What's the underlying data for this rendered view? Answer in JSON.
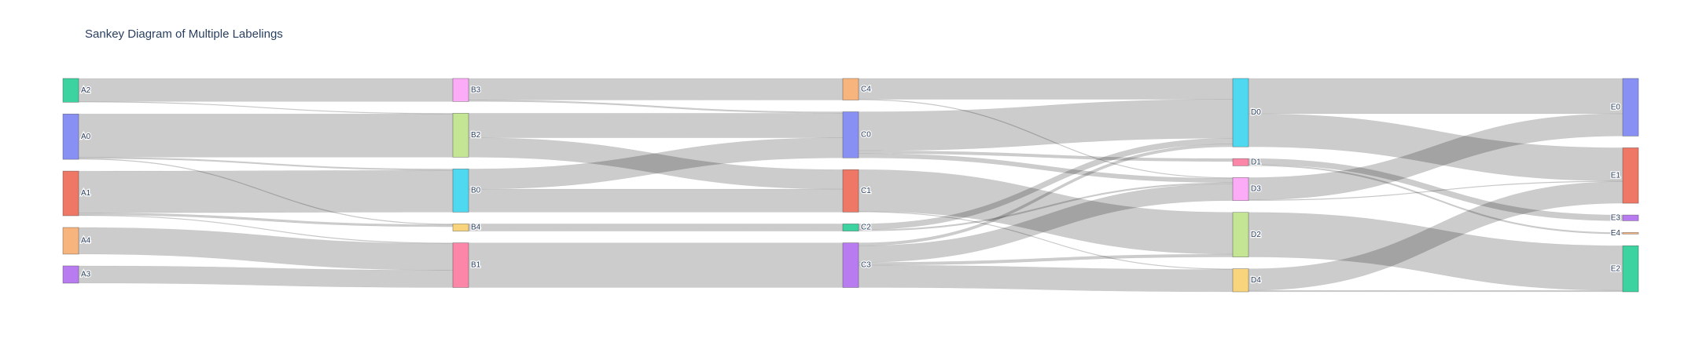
{
  "title": "Sankey Diagram of Multiple Labelings",
  "chart_data": {
    "type": "sankey",
    "title": "Sankey Diagram of Multiple Labelings",
    "link_color": "rgba(0,0,0,0.2)",
    "columns": [
      [
        {
          "id": "A2",
          "label": "A2",
          "color": "#3cd3a1"
        },
        {
          "id": "A0",
          "label": "A0",
          "color": "#8891f3"
        },
        {
          "id": "A1",
          "label": "A1",
          "color": "#ee7765"
        },
        {
          "id": "A4",
          "label": "A4",
          "color": "#f7b47c"
        },
        {
          "id": "A3",
          "label": "A3",
          "color": "#b87cf0"
        }
      ],
      [
        {
          "id": "B3",
          "label": "B3",
          "color": "#fcabf7"
        },
        {
          "id": "B2",
          "label": "B2",
          "color": "#c4e694"
        },
        {
          "id": "B0",
          "label": "B0",
          "color": "#4fd9f0"
        },
        {
          "id": "B4",
          "label": "B4",
          "color": "#f8d57c"
        },
        {
          "id": "B1",
          "label": "B1",
          "color": "#fb86a8"
        }
      ],
      [
        {
          "id": "C4",
          "label": "C4",
          "color": "#f7b47c"
        },
        {
          "id": "C0",
          "label": "C0",
          "color": "#8891f3"
        },
        {
          "id": "C1",
          "label": "C1",
          "color": "#ee7765"
        },
        {
          "id": "C2",
          "label": "C2",
          "color": "#3cd3a1"
        },
        {
          "id": "C3",
          "label": "C3",
          "color": "#b87cf0"
        }
      ],
      [
        {
          "id": "D0",
          "label": "D0",
          "color": "#4fd9f0"
        },
        {
          "id": "D1",
          "label": "D1",
          "color": "#fb86a8"
        },
        {
          "id": "D3",
          "label": "D3",
          "color": "#fcabf7"
        },
        {
          "id": "D2",
          "label": "D2",
          "color": "#c4e694"
        },
        {
          "id": "D4",
          "label": "D4",
          "color": "#f8d57c"
        }
      ],
      [
        {
          "id": "E0",
          "label": "E0",
          "color": "#8891f3"
        },
        {
          "id": "E1",
          "label": "E1",
          "color": "#ee7765"
        },
        {
          "id": "E3",
          "label": "E3",
          "color": "#b87cf0"
        },
        {
          "id": "E4",
          "label": "E4",
          "color": "#f7b47c"
        },
        {
          "id": "E2",
          "label": "E2",
          "color": "#3cd3a1"
        }
      ]
    ],
    "links": [
      {
        "source": "A2",
        "target": "B3",
        "value": 32
      },
      {
        "source": "A2",
        "target": "B2",
        "value": 1
      },
      {
        "source": "A0",
        "target": "B2",
        "value": 60
      },
      {
        "source": "A0",
        "target": "B0",
        "value": 2
      },
      {
        "source": "A0",
        "target": "B4",
        "value": 1
      },
      {
        "source": "A1",
        "target": "B0",
        "value": 58
      },
      {
        "source": "A1",
        "target": "B4",
        "value": 3
      },
      {
        "source": "A1",
        "target": "B1",
        "value": 1
      },
      {
        "source": "A4",
        "target": "B1",
        "value": 37
      },
      {
        "source": "A3",
        "target": "B1",
        "value": 24
      },
      {
        "source": "B3",
        "target": "C4",
        "value": 30
      },
      {
        "source": "B3",
        "target": "C0",
        "value": 2
      },
      {
        "source": "B2",
        "target": "C0",
        "value": 34
      },
      {
        "source": "B2",
        "target": "C1",
        "value": 27
      },
      {
        "source": "B0",
        "target": "C0",
        "value": 28
      },
      {
        "source": "B0",
        "target": "C1",
        "value": 32
      },
      {
        "source": "B4",
        "target": "C2",
        "value": 10
      },
      {
        "source": "B1",
        "target": "C3",
        "value": 62
      },
      {
        "source": "C4",
        "target": "D0",
        "value": 29
      },
      {
        "source": "C4",
        "target": "D3",
        "value": 1
      },
      {
        "source": "C0",
        "target": "D0",
        "value": 54
      },
      {
        "source": "C0",
        "target": "D1",
        "value": 4
      },
      {
        "source": "C0",
        "target": "D3",
        "value": 6
      },
      {
        "source": "C1",
        "target": "D2",
        "value": 58
      },
      {
        "source": "C1",
        "target": "D4",
        "value": 1
      },
      {
        "source": "C2",
        "target": "D0",
        "value": 8
      },
      {
        "source": "C2",
        "target": "D3",
        "value": 2
      },
      {
        "source": "C3",
        "target": "D0",
        "value": 4
      },
      {
        "source": "C3",
        "target": "D3",
        "value": 23
      },
      {
        "source": "C3",
        "target": "D4",
        "value": 31
      },
      {
        "source": "C3",
        "target": "D2",
        "value": 4
      },
      {
        "source": "D0",
        "target": "E0",
        "value": 49
      },
      {
        "source": "D0",
        "target": "E1",
        "value": 46
      },
      {
        "source": "D1",
        "target": "E3",
        "value": 8
      },
      {
        "source": "D1",
        "target": "E4",
        "value": 2
      },
      {
        "source": "D3",
        "target": "E0",
        "value": 31
      },
      {
        "source": "D3",
        "target": "E1",
        "value": 1
      },
      {
        "source": "D2",
        "target": "E2",
        "value": 62
      },
      {
        "source": "D4",
        "target": "E1",
        "value": 30
      },
      {
        "source": "D4",
        "target": "E2",
        "value": 2
      }
    ]
  }
}
